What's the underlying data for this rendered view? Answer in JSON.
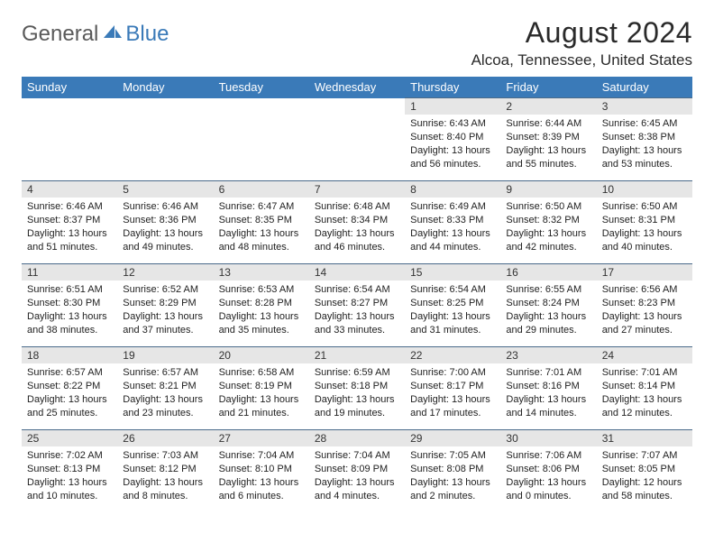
{
  "logo": {
    "general": "General",
    "blue": "Blue"
  },
  "title": "August 2024",
  "location": "Alcoa, Tennessee, United States",
  "colors": {
    "header_bg": "#3a7ab8",
    "header_text": "#ffffff",
    "daynum_bg": "#e6e6e6",
    "rule": "#4a6a8a",
    "logo_general": "#5a5a5a",
    "logo_blue": "#3a7ab8"
  },
  "day_headers": [
    "Sunday",
    "Monday",
    "Tuesday",
    "Wednesday",
    "Thursday",
    "Friday",
    "Saturday"
  ],
  "weeks": [
    [
      {
        "blank": true
      },
      {
        "blank": true
      },
      {
        "blank": true
      },
      {
        "blank": true
      },
      {
        "n": "1",
        "sunrise": "6:43 AM",
        "sunset": "8:40 PM",
        "daylight": "13 hours and 56 minutes."
      },
      {
        "n": "2",
        "sunrise": "6:44 AM",
        "sunset": "8:39 PM",
        "daylight": "13 hours and 55 minutes."
      },
      {
        "n": "3",
        "sunrise": "6:45 AM",
        "sunset": "8:38 PM",
        "daylight": "13 hours and 53 minutes."
      }
    ],
    [
      {
        "n": "4",
        "sunrise": "6:46 AM",
        "sunset": "8:37 PM",
        "daylight": "13 hours and 51 minutes."
      },
      {
        "n": "5",
        "sunrise": "6:46 AM",
        "sunset": "8:36 PM",
        "daylight": "13 hours and 49 minutes."
      },
      {
        "n": "6",
        "sunrise": "6:47 AM",
        "sunset": "8:35 PM",
        "daylight": "13 hours and 48 minutes."
      },
      {
        "n": "7",
        "sunrise": "6:48 AM",
        "sunset": "8:34 PM",
        "daylight": "13 hours and 46 minutes."
      },
      {
        "n": "8",
        "sunrise": "6:49 AM",
        "sunset": "8:33 PM",
        "daylight": "13 hours and 44 minutes."
      },
      {
        "n": "9",
        "sunrise": "6:50 AM",
        "sunset": "8:32 PM",
        "daylight": "13 hours and 42 minutes."
      },
      {
        "n": "10",
        "sunrise": "6:50 AM",
        "sunset": "8:31 PM",
        "daylight": "13 hours and 40 minutes."
      }
    ],
    [
      {
        "n": "11",
        "sunrise": "6:51 AM",
        "sunset": "8:30 PM",
        "daylight": "13 hours and 38 minutes."
      },
      {
        "n": "12",
        "sunrise": "6:52 AM",
        "sunset": "8:29 PM",
        "daylight": "13 hours and 37 minutes."
      },
      {
        "n": "13",
        "sunrise": "6:53 AM",
        "sunset": "8:28 PM",
        "daylight": "13 hours and 35 minutes."
      },
      {
        "n": "14",
        "sunrise": "6:54 AM",
        "sunset": "8:27 PM",
        "daylight": "13 hours and 33 minutes."
      },
      {
        "n": "15",
        "sunrise": "6:54 AM",
        "sunset": "8:25 PM",
        "daylight": "13 hours and 31 minutes."
      },
      {
        "n": "16",
        "sunrise": "6:55 AM",
        "sunset": "8:24 PM",
        "daylight": "13 hours and 29 minutes."
      },
      {
        "n": "17",
        "sunrise": "6:56 AM",
        "sunset": "8:23 PM",
        "daylight": "13 hours and 27 minutes."
      }
    ],
    [
      {
        "n": "18",
        "sunrise": "6:57 AM",
        "sunset": "8:22 PM",
        "daylight": "13 hours and 25 minutes."
      },
      {
        "n": "19",
        "sunrise": "6:57 AM",
        "sunset": "8:21 PM",
        "daylight": "13 hours and 23 minutes."
      },
      {
        "n": "20",
        "sunrise": "6:58 AM",
        "sunset": "8:19 PM",
        "daylight": "13 hours and 21 minutes."
      },
      {
        "n": "21",
        "sunrise": "6:59 AM",
        "sunset": "8:18 PM",
        "daylight": "13 hours and 19 minutes."
      },
      {
        "n": "22",
        "sunrise": "7:00 AM",
        "sunset": "8:17 PM",
        "daylight": "13 hours and 17 minutes."
      },
      {
        "n": "23",
        "sunrise": "7:01 AM",
        "sunset": "8:16 PM",
        "daylight": "13 hours and 14 minutes."
      },
      {
        "n": "24",
        "sunrise": "7:01 AM",
        "sunset": "8:14 PM",
        "daylight": "13 hours and 12 minutes."
      }
    ],
    [
      {
        "n": "25",
        "sunrise": "7:02 AM",
        "sunset": "8:13 PM",
        "daylight": "13 hours and 10 minutes."
      },
      {
        "n": "26",
        "sunrise": "7:03 AM",
        "sunset": "8:12 PM",
        "daylight": "13 hours and 8 minutes."
      },
      {
        "n": "27",
        "sunrise": "7:04 AM",
        "sunset": "8:10 PM",
        "daylight": "13 hours and 6 minutes."
      },
      {
        "n": "28",
        "sunrise": "7:04 AM",
        "sunset": "8:09 PM",
        "daylight": "13 hours and 4 minutes."
      },
      {
        "n": "29",
        "sunrise": "7:05 AM",
        "sunset": "8:08 PM",
        "daylight": "13 hours and 2 minutes."
      },
      {
        "n": "30",
        "sunrise": "7:06 AM",
        "sunset": "8:06 PM",
        "daylight": "13 hours and 0 minutes."
      },
      {
        "n": "31",
        "sunrise": "7:07 AM",
        "sunset": "8:05 PM",
        "daylight": "12 hours and 58 minutes."
      }
    ]
  ],
  "labels": {
    "sunrise": "Sunrise: ",
    "sunset": "Sunset: ",
    "daylight": "Daylight: "
  }
}
